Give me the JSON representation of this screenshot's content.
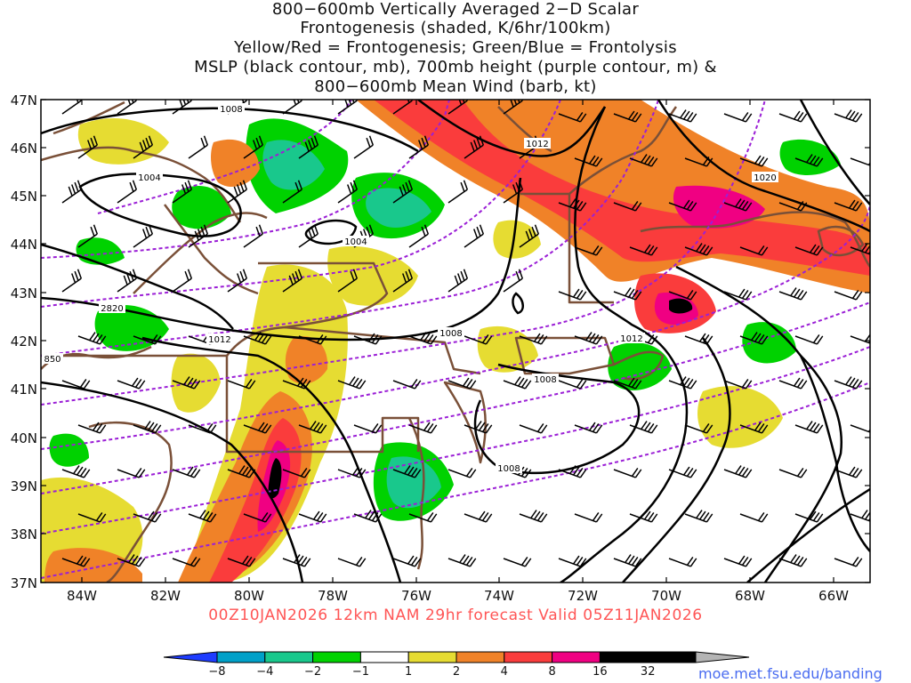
{
  "title": {
    "line1": "800−600mb Vertically Averaged 2−D Scalar",
    "line2": "Frontogenesis (shaded, K/6hr/100km)",
    "line3": "Yellow/Red = Frontogenesis;  Green/Blue = Frontolysis",
    "line4": "MSLP (black contour, mb), 700mb height (purple contour, m) &",
    "line5": "800−600mb Mean Wind (barb, kt)"
  },
  "map": {
    "lat_labels": [
      "47N",
      "46N",
      "45N",
      "44N",
      "43N",
      "42N",
      "41N",
      "40N",
      "39N",
      "38N",
      "37N"
    ],
    "lon_labels": [
      "84W",
      "82W",
      "80W",
      "78W",
      "76W",
      "74W",
      "72W",
      "70W",
      "68W",
      "66W"
    ],
    "mslp_contour_labels": [
      "1008",
      "1012",
      "1004",
      "1004",
      "1020",
      "2820",
      "1012",
      "1008",
      "1012",
      "1008",
      "1008",
      "850"
    ],
    "colors": {
      "mslp_contour": "#000000",
      "height_contour": "#9b1fd6",
      "state_borders": "#7a5038",
      "frontolysis_weak": "#00d200",
      "frontolysis_mid": "#19c88c",
      "frontogenesis_weak": "#e6dc32",
      "frontogenesis_mid": "#f08228",
      "frontogenesis_strong": "#fa3c3c",
      "frontogenesis_very_strong": "#f00082",
      "frontogenesis_extreme": "#000000"
    }
  },
  "valid_line": "00Z10JAN2026 12km NAM 29hr forecast Valid 05Z11JAN2026",
  "colorbar": {
    "labels": [
      "−8",
      "−4",
      "−2",
      "−1",
      "1",
      "2",
      "4",
      "8",
      "16",
      "32"
    ],
    "colors": [
      "#1e3cff",
      "#00a0c8",
      "#19c88c",
      "#00d200",
      "#00d200",
      "#ffffff",
      "#e6dc32",
      "#f08228",
      "#fa3c3c",
      "#f00082",
      "#000000",
      "#b4b4b4"
    ]
  },
  "credit": "moe.met.fsu.edu/banding"
}
